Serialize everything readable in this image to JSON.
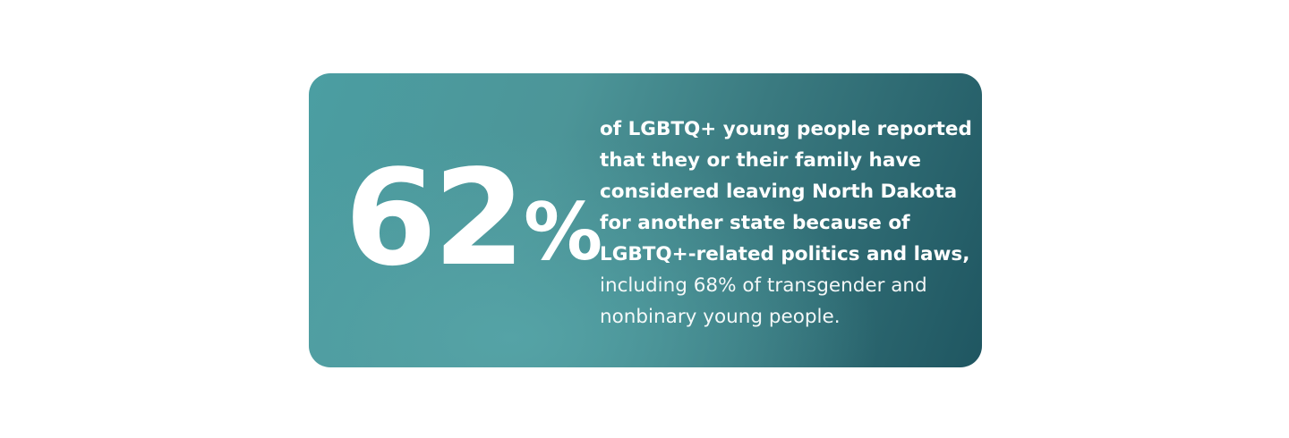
{
  "stat": {
    "number": "62",
    "unit": "%"
  },
  "description": {
    "emphasis_lines": [
      "of LGBTQ+ young people reported",
      "that they or their family have",
      "considered leaving North Dakota",
      "for another state because of",
      "LGBTQ+-related politics and laws,"
    ],
    "detail_lines": [
      "including 68% of transgender and",
      "nonbinary young people."
    ]
  }
}
